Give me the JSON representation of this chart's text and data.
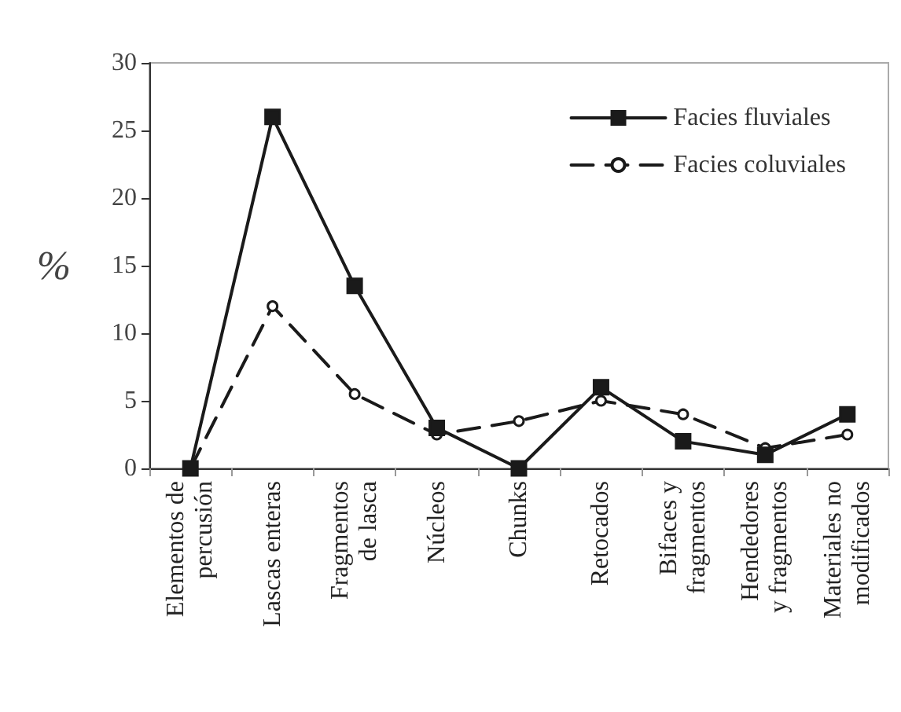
{
  "chart_data": {
    "type": "line",
    "ylabel": "%",
    "categories": [
      "Elementos de\npercusión",
      "Lascas enteras",
      "Fragmentos\nde lasca",
      "Núcleos",
      "Chunks",
      "Retocados",
      "Bifaces y\nfragmentos",
      "Hendedores\ny fragmentos",
      "Materiales no\nmodificados"
    ],
    "series": [
      {
        "name": "Facies fluviales",
        "color": "#1a1a1a",
        "marker": "square",
        "line_style": "solid",
        "values": [
          0,
          26,
          13.5,
          3,
          0,
          6,
          2,
          1,
          4
        ]
      },
      {
        "name": "Facies coluviales",
        "color": "#1a1a1a",
        "marker": "circle",
        "line_style": "dashed",
        "values": [
          0,
          12,
          5.5,
          2.5,
          3.5,
          5,
          4,
          1.5,
          2.5
        ]
      }
    ],
    "ylim": [
      0,
      30
    ],
    "yticks": [
      0,
      5,
      10,
      15,
      20,
      25,
      30
    ],
    "grid": false,
    "legend": "top right"
  }
}
